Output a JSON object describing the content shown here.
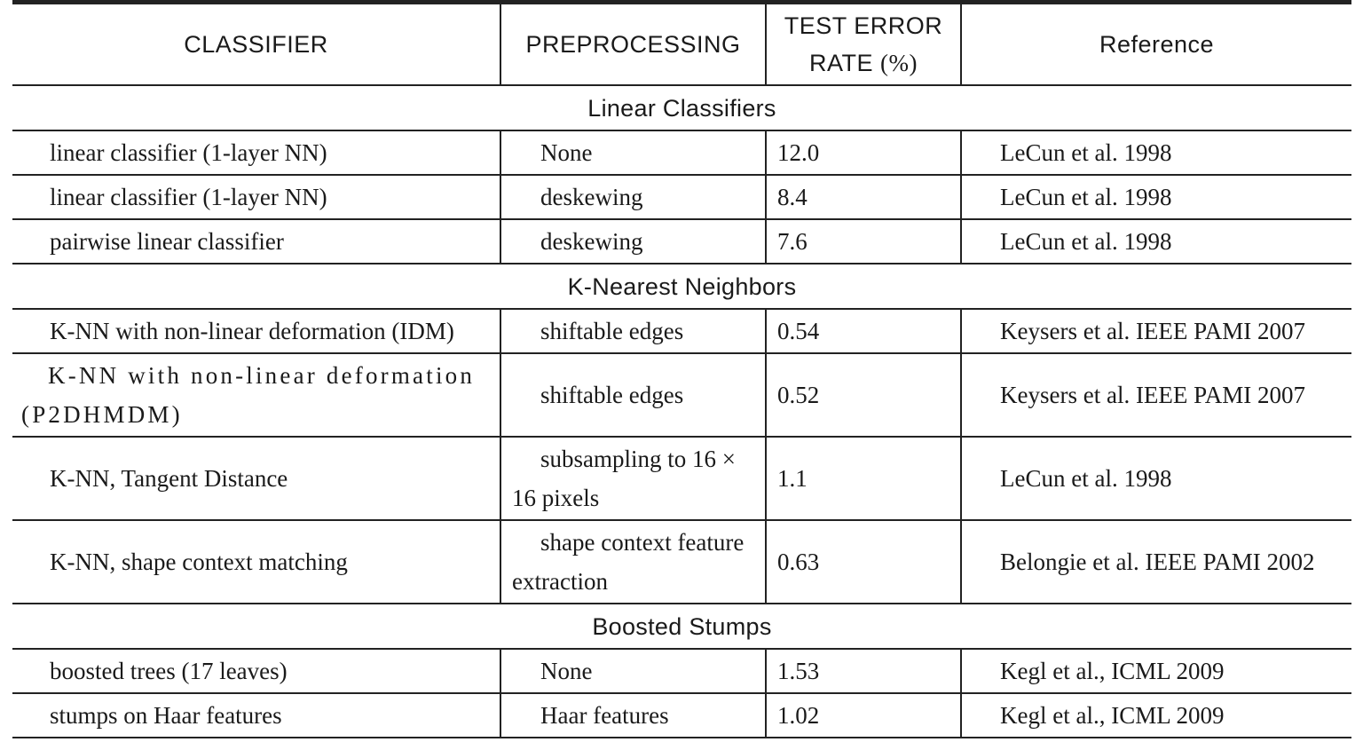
{
  "headers": {
    "classifier": "CLASSIFIER",
    "preprocessing": "PREPROCESSING",
    "error_line1": "TEST ERROR",
    "error_line2": "RATE",
    "error_unit": "(%)",
    "reference": "Reference"
  },
  "sections": [
    {
      "title": "Linear Classifiers",
      "rows": [
        {
          "classifier": "linear classifier (1-layer NN)",
          "preprocessing": "None",
          "error": "12.0",
          "reference": "LeCun et al. 1998"
        },
        {
          "classifier": "linear classifier (1-layer NN)",
          "preprocessing": "deskewing",
          "error": "8.4",
          "reference": "LeCun et al. 1998"
        },
        {
          "classifier": "pairwise linear classifier",
          "preprocessing": "deskewing",
          "error": "7.6",
          "reference": "LeCun et al. 1998"
        }
      ]
    },
    {
      "title": "K-Nearest Neighbors",
      "rows": [
        {
          "classifier": "K-NN with non-linear deformation (IDM)",
          "preprocessing": "shiftable edges",
          "error": "0.54",
          "reference": "Keysers et al. IEEE PAMI 2007"
        },
        {
          "classifier": "K-NN with non-linear deformation (P2DHMDM)",
          "preprocessing": "shiftable edges",
          "error": "0.52",
          "reference": "Keysers et al. IEEE PAMI 2007"
        },
        {
          "classifier": "K-NN, Tangent Distance",
          "preprocessing": "subsampling to 16 × 16 pixels",
          "error": "1.1",
          "reference": "LeCun et al. 1998"
        },
        {
          "classifier": "K-NN, shape context matching",
          "preprocessing": "shape context feature extraction",
          "error": "0.63",
          "reference": "Belongie et al. IEEE PAMI 2002"
        }
      ]
    },
    {
      "title": "Boosted Stumps",
      "rows": [
        {
          "classifier": "boosted trees (17 leaves)",
          "preprocessing": "None",
          "error": "1.53",
          "reference": "Kegl et al., ICML 2009"
        },
        {
          "classifier": "stumps on Haar features",
          "preprocessing": "Haar features",
          "error": "1.02",
          "reference": "Kegl et al., ICML 2009"
        }
      ]
    }
  ]
}
